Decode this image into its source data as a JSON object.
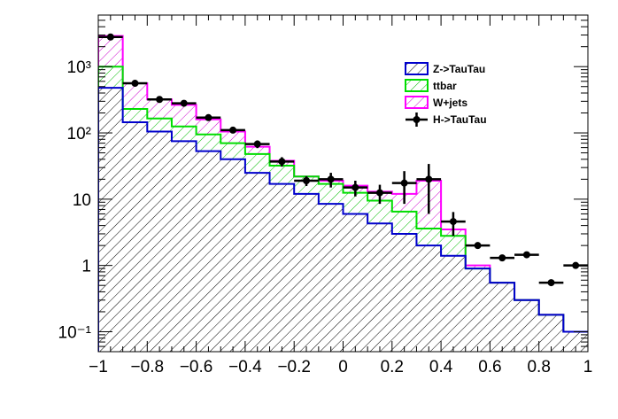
{
  "chart_data": {
    "type": "histogram-stacked",
    "x_edges": [
      -1.0,
      -0.9,
      -0.8,
      -0.7,
      -0.6,
      -0.5,
      -0.4,
      -0.3,
      -0.2,
      -0.1,
      0.0,
      0.1,
      0.2,
      0.3,
      0.4,
      0.5,
      0.6,
      0.7,
      0.8,
      0.9,
      1.0
    ],
    "xlim": [
      -1,
      1
    ],
    "ylim": [
      0.05,
      6000
    ],
    "y_scale": "log",
    "x_ticks": [
      {
        "value": -1,
        "label": "−1"
      },
      {
        "value": -0.8,
        "label": "−0.8"
      },
      {
        "value": -0.6,
        "label": "−0.6"
      },
      {
        "value": -0.4,
        "label": "−0.4"
      },
      {
        "value": -0.2,
        "label": "−0.2"
      },
      {
        "value": 0,
        "label": "0"
      },
      {
        "value": 0.2,
        "label": "0.2"
      },
      {
        "value": 0.4,
        "label": "0.4"
      },
      {
        "value": 0.6,
        "label": "0.6"
      },
      {
        "value": 0.8,
        "label": "0.8"
      },
      {
        "value": 1,
        "label": "1"
      }
    ],
    "y_ticks": [
      {
        "value": 0.1,
        "label": "10⁻¹"
      },
      {
        "value": 1,
        "label": "1"
      },
      {
        "value": 10,
        "label": "10"
      },
      {
        "value": 100,
        "label": "10²"
      },
      {
        "value": 1000,
        "label": "10³"
      }
    ],
    "stack": [
      {
        "name": "Z->TauTau",
        "line_color": "#0000cc",
        "hatch": "black-diag",
        "values": [
          480,
          145,
          105,
          75,
          53,
          40,
          25,
          17,
          12,
          8.5,
          6.0,
          4.3,
          3.0,
          2.0,
          1.4,
          0.9,
          0.55,
          0.3,
          0.18,
          0.1
        ]
      },
      {
        "name": "ttbar",
        "line_color": "#00dd00",
        "hatch": "green-diag",
        "values": [
          1000,
          230,
          165,
          125,
          95,
          70,
          48,
          32,
          22,
          17,
          12.5,
          9.5,
          6.5,
          3.6,
          2.8,
          0.9,
          0.55,
          0.3,
          0.18,
          0.1
        ]
      },
      {
        "name": "W+jets",
        "line_color": "#ff00ff",
        "hatch": "magenta-diag",
        "values": [
          2900,
          560,
          320,
          265,
          160,
          105,
          62,
          38,
          20,
          19,
          16,
          13,
          12,
          19,
          3.5,
          1.0,
          0.55,
          0.3,
          0.18,
          0.1
        ]
      }
    ],
    "data_series": {
      "name": "H->TauTau",
      "values": [
        2800,
        560,
        320,
        280,
        170,
        110,
        68,
        37,
        19,
        20,
        15,
        12.5,
        17.5,
        20,
        4.6,
        2.0,
        1.3,
        1.45,
        0.55,
        1.0
      ],
      "err_low": [
        60,
        24,
        18,
        17,
        13,
        11,
        9,
        6,
        3.2,
        5,
        4,
        4,
        9,
        14,
        1.8,
        0,
        0,
        0,
        0,
        0
      ],
      "err_high": [
        60,
        24,
        18,
        17,
        13,
        11,
        9,
        6,
        3.2,
        5,
        4,
        4,
        9,
        14,
        1.8,
        0,
        0,
        0,
        0,
        0
      ]
    },
    "legend": [
      {
        "name": "Z->TauTau",
        "kind": "fill",
        "color": "#0000cc"
      },
      {
        "name": "ttbar",
        "kind": "fill",
        "color": "#00dd00"
      },
      {
        "name": "W+jets",
        "kind": "fill",
        "color": "#ff00ff"
      },
      {
        "name": "H->TauTau",
        "kind": "marker",
        "color": "#000000"
      }
    ],
    "legend_position": "upper-right"
  }
}
